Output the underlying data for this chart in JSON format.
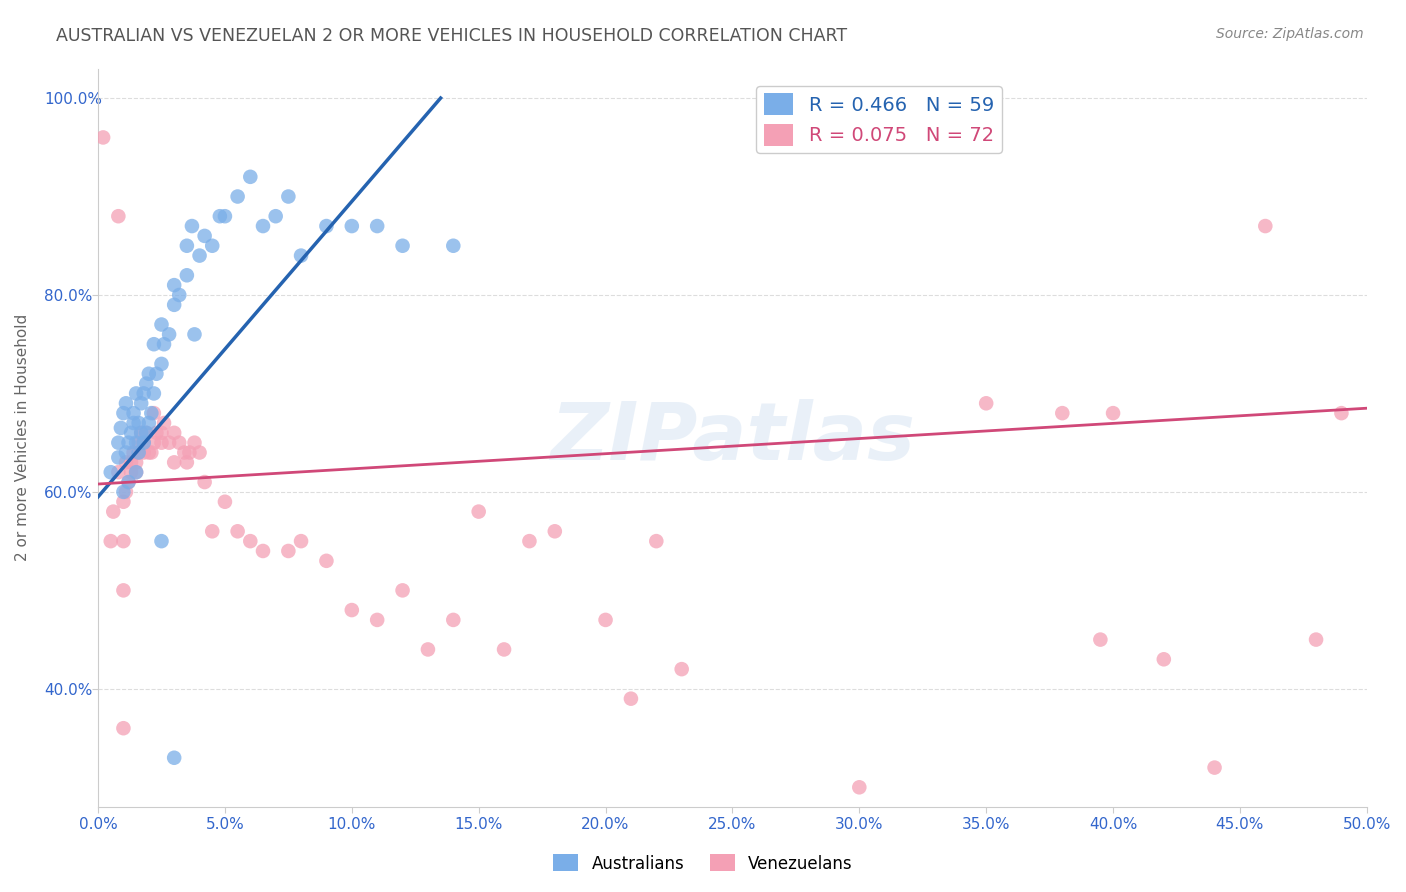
{
  "title": "AUSTRALIAN VS VENEZUELAN 2 OR MORE VEHICLES IN HOUSEHOLD CORRELATION CHART",
  "source": "Source: ZipAtlas.com",
  "ylabel": "2 or more Vehicles in Household",
  "xlim": [
    0.0,
    0.5
  ],
  "ylim": [
    0.28,
    1.03
  ],
  "xticks": [
    0.0,
    0.05,
    0.1,
    0.15,
    0.2,
    0.25,
    0.3,
    0.35,
    0.4,
    0.45,
    0.5
  ],
  "yticks": [
    0.4,
    0.6,
    0.8,
    1.0
  ],
  "watermark_text": "ZIPatlas",
  "blue_label_r": "R = 0.466",
  "blue_label_n": "N = 59",
  "pink_label_r": "R = 0.075",
  "pink_label_n": "N = 72",
  "blue_color": "#7aaee8",
  "pink_color": "#f4a0b5",
  "blue_line_color": "#2563b0",
  "pink_line_color": "#d04878",
  "background_color": "#ffffff",
  "grid_color": "#dddddd",
  "title_color": "#555555",
  "axis_label_color": "#666666",
  "tick_label_color": "#3366cc",
  "blue_line_x0": 0.0,
  "blue_line_y0": 0.595,
  "blue_line_x1": 0.135,
  "blue_line_y1": 1.0,
  "pink_line_x0": 0.0,
  "pink_line_y0": 0.608,
  "pink_line_x1": 0.5,
  "pink_line_y1": 0.685,
  "blue_x": [
    0.005,
    0.008,
    0.008,
    0.009,
    0.01,
    0.01,
    0.011,
    0.011,
    0.012,
    0.012,
    0.013,
    0.014,
    0.014,
    0.015,
    0.015,
    0.015,
    0.016,
    0.016,
    0.017,
    0.017,
    0.018,
    0.018,
    0.019,
    0.019,
    0.02,
    0.02,
    0.021,
    0.022,
    0.022,
    0.023,
    0.025,
    0.025,
    0.026,
    0.028,
    0.03,
    0.03,
    0.032,
    0.035,
    0.035,
    0.037,
    0.038,
    0.04,
    0.042,
    0.045,
    0.048,
    0.05,
    0.055,
    0.06,
    0.065,
    0.07,
    0.075,
    0.08,
    0.09,
    0.1,
    0.11,
    0.12,
    0.14,
    0.025,
    0.03
  ],
  "blue_y": [
    0.62,
    0.635,
    0.65,
    0.665,
    0.6,
    0.68,
    0.64,
    0.69,
    0.61,
    0.65,
    0.66,
    0.67,
    0.68,
    0.62,
    0.65,
    0.7,
    0.64,
    0.67,
    0.66,
    0.69,
    0.65,
    0.7,
    0.66,
    0.71,
    0.67,
    0.72,
    0.68,
    0.7,
    0.75,
    0.72,
    0.73,
    0.77,
    0.75,
    0.76,
    0.79,
    0.81,
    0.8,
    0.85,
    0.82,
    0.87,
    0.76,
    0.84,
    0.86,
    0.85,
    0.88,
    0.88,
    0.9,
    0.92,
    0.87,
    0.88,
    0.9,
    0.84,
    0.87,
    0.87,
    0.87,
    0.85,
    0.85,
    0.55,
    0.33
  ],
  "pink_x": [
    0.002,
    0.005,
    0.006,
    0.008,
    0.008,
    0.01,
    0.01,
    0.011,
    0.011,
    0.012,
    0.013,
    0.013,
    0.014,
    0.015,
    0.015,
    0.016,
    0.016,
    0.017,
    0.018,
    0.018,
    0.019,
    0.02,
    0.021,
    0.022,
    0.022,
    0.023,
    0.025,
    0.025,
    0.026,
    0.028,
    0.03,
    0.03,
    0.032,
    0.034,
    0.035,
    0.036,
    0.038,
    0.04,
    0.042,
    0.045,
    0.05,
    0.055,
    0.06,
    0.065,
    0.075,
    0.08,
    0.09,
    0.1,
    0.11,
    0.12,
    0.13,
    0.14,
    0.15,
    0.16,
    0.17,
    0.18,
    0.2,
    0.21,
    0.22,
    0.23,
    0.3,
    0.35,
    0.38,
    0.395,
    0.4,
    0.42,
    0.44,
    0.46,
    0.48,
    0.49,
    0.01,
    0.01
  ],
  "pink_y": [
    0.96,
    0.55,
    0.58,
    0.62,
    0.88,
    0.55,
    0.59,
    0.6,
    0.63,
    0.61,
    0.62,
    0.63,
    0.64,
    0.62,
    0.63,
    0.64,
    0.65,
    0.66,
    0.64,
    0.65,
    0.66,
    0.64,
    0.64,
    0.65,
    0.68,
    0.66,
    0.65,
    0.66,
    0.67,
    0.65,
    0.63,
    0.66,
    0.65,
    0.64,
    0.63,
    0.64,
    0.65,
    0.64,
    0.61,
    0.56,
    0.59,
    0.56,
    0.55,
    0.54,
    0.54,
    0.55,
    0.53,
    0.48,
    0.47,
    0.5,
    0.44,
    0.47,
    0.58,
    0.44,
    0.55,
    0.56,
    0.47,
    0.39,
    0.55,
    0.42,
    0.3,
    0.69,
    0.68,
    0.45,
    0.68,
    0.43,
    0.32,
    0.87,
    0.45,
    0.68,
    0.5,
    0.36
  ]
}
